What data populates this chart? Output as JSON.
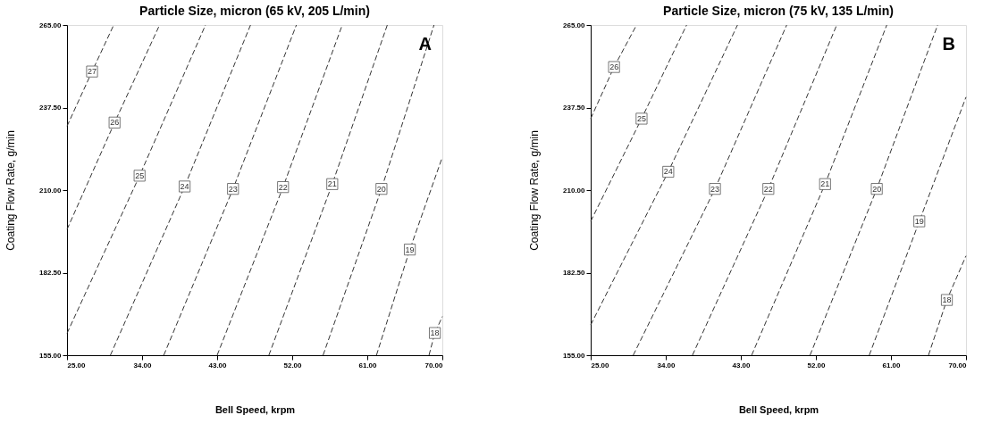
{
  "chart_data": [
    {
      "type": "line",
      "title": "Particle Size, micron (65 kV, 205 L/min)",
      "xlabel": "Bell Speed, krpm",
      "ylabel": "Coating Flow Rate, g/min",
      "xlim": [
        25,
        70
      ],
      "ylim": [
        155,
        265
      ],
      "xticks": [
        {
          "value": 25,
          "label": "25.00"
        },
        {
          "value": 34,
          "label": "34.00"
        },
        {
          "value": 43,
          "label": "43.00"
        },
        {
          "value": 52,
          "label": "52.00"
        },
        {
          "value": 61,
          "label": "61.00"
        },
        {
          "value": 70,
          "label": "70.00"
        }
      ],
      "yticks": [
        {
          "value": 155,
          "label": "155.00"
        },
        {
          "value": 182.5,
          "label": "182.50"
        },
        {
          "value": 210,
          "label": "210.00"
        },
        {
          "value": 237.5,
          "label": "237.50"
        },
        {
          "value": 265,
          "label": "265.00"
        }
      ],
      "grid": false,
      "marker": "none",
      "line_style": "dashed",
      "annotations": [
        "A"
      ],
      "series": [
        {
          "name": "27",
          "color": "#333333",
          "x": [
            25,
            28.0,
            30.6
          ],
          "values": [
            231.3,
            249.5,
            265
          ]
        },
        {
          "name": "26",
          "color": "#333333",
          "x": [
            25,
            30.7,
            36.1
          ],
          "values": [
            196.9,
            232.5,
            265
          ]
        },
        {
          "name": "25",
          "color": "#333333",
          "x": [
            25,
            33.7,
            41.6
          ],
          "values": [
            162.3,
            214.8,
            265
          ]
        },
        {
          "name": "24",
          "color": "#333333",
          "x": [
            30.2,
            39.1,
            47.0
          ],
          "values": [
            155,
            211.2,
            265
          ]
        },
        {
          "name": "23",
          "color": "#333333",
          "x": [
            36.6,
            44.9,
            52.5
          ],
          "values": [
            155,
            210.4,
            265
          ]
        },
        {
          "name": "22",
          "color": "#333333",
          "x": [
            43.0,
            50.9,
            58.0
          ],
          "values": [
            155,
            211.0,
            265
          ]
        },
        {
          "name": "21",
          "color": "#333333",
          "x": [
            49.2,
            56.8,
            63.4
          ],
          "values": [
            155,
            212.0,
            265
          ]
        },
        {
          "name": "20",
          "color": "#333333",
          "x": [
            55.7,
            62.7,
            69.0
          ],
          "values": [
            155,
            210.4,
            265
          ]
        },
        {
          "name": "19",
          "color": "#333333",
          "x": [
            62.1,
            66.1,
            70
          ],
          "values": [
            155,
            190.2,
            221.0
          ]
        },
        {
          "name": "18",
          "color": "#333333",
          "x": [
            68.4,
            69.1,
            70
          ],
          "values": [
            155,
            162.4,
            167.9
          ]
        }
      ]
    },
    {
      "type": "line",
      "title": "Particle Size, micron (75 kV, 135 L/min)",
      "xlabel": "Bell Speed, krpm",
      "ylabel": "Coating Flow Rate, g/min",
      "xlim": [
        25,
        70
      ],
      "ylim": [
        155,
        265
      ],
      "xticks": [
        {
          "value": 25,
          "label": "25.00"
        },
        {
          "value": 34,
          "label": "34.00"
        },
        {
          "value": 43,
          "label": "43.00"
        },
        {
          "value": 52,
          "label": "52.00"
        },
        {
          "value": 61,
          "label": "61.00"
        },
        {
          "value": 70,
          "label": "70.00"
        }
      ],
      "yticks": [
        {
          "value": 155,
          "label": "155.00"
        },
        {
          "value": 182.5,
          "label": "182.50"
        },
        {
          "value": 210,
          "label": "210.00"
        },
        {
          "value": 237.5,
          "label": "237.50"
        },
        {
          "value": 265,
          "label": "265.00"
        }
      ],
      "grid": false,
      "marker": "none",
      "line_style": "dashed",
      "annotations": [
        "B"
      ],
      "series": [
        {
          "name": "26",
          "color": "#333333",
          "x": [
            25,
            27.8,
            30.5
          ],
          "values": [
            233.8,
            251.0,
            265
          ]
        },
        {
          "name": "25",
          "color": "#333333",
          "x": [
            25,
            31.1,
            36.5
          ],
          "values": [
            199.6,
            233.8,
            265
          ]
        },
        {
          "name": "24",
          "color": "#333333",
          "x": [
            25,
            34.3,
            42.6
          ],
          "values": [
            165.1,
            216.1,
            265
          ]
        },
        {
          "name": "23",
          "color": "#333333",
          "x": [
            30.1,
            39.9,
            48.5
          ],
          "values": [
            155,
            210.4,
            265
          ]
        },
        {
          "name": "22",
          "color": "#333333",
          "x": [
            37.2,
            46.3,
            54.5
          ],
          "values": [
            155,
            210.4,
            265
          ]
        },
        {
          "name": "21",
          "color": "#333333",
          "x": [
            44.3,
            53.1,
            60.5
          ],
          "values": [
            155,
            212.0,
            265
          ]
        },
        {
          "name": "20",
          "color": "#333333",
          "x": [
            51.3,
            59.3,
            66.6
          ],
          "values": [
            155,
            210.4,
            265
          ]
        },
        {
          "name": "19",
          "color": "#333333",
          "x": [
            58.4,
            64.4,
            70
          ],
          "values": [
            155,
            199.6,
            241.0
          ]
        },
        {
          "name": "18",
          "color": "#333333",
          "x": [
            65.5,
            67.7,
            70
          ],
          "values": [
            155,
            173.4,
            188.1
          ]
        }
      ]
    }
  ]
}
